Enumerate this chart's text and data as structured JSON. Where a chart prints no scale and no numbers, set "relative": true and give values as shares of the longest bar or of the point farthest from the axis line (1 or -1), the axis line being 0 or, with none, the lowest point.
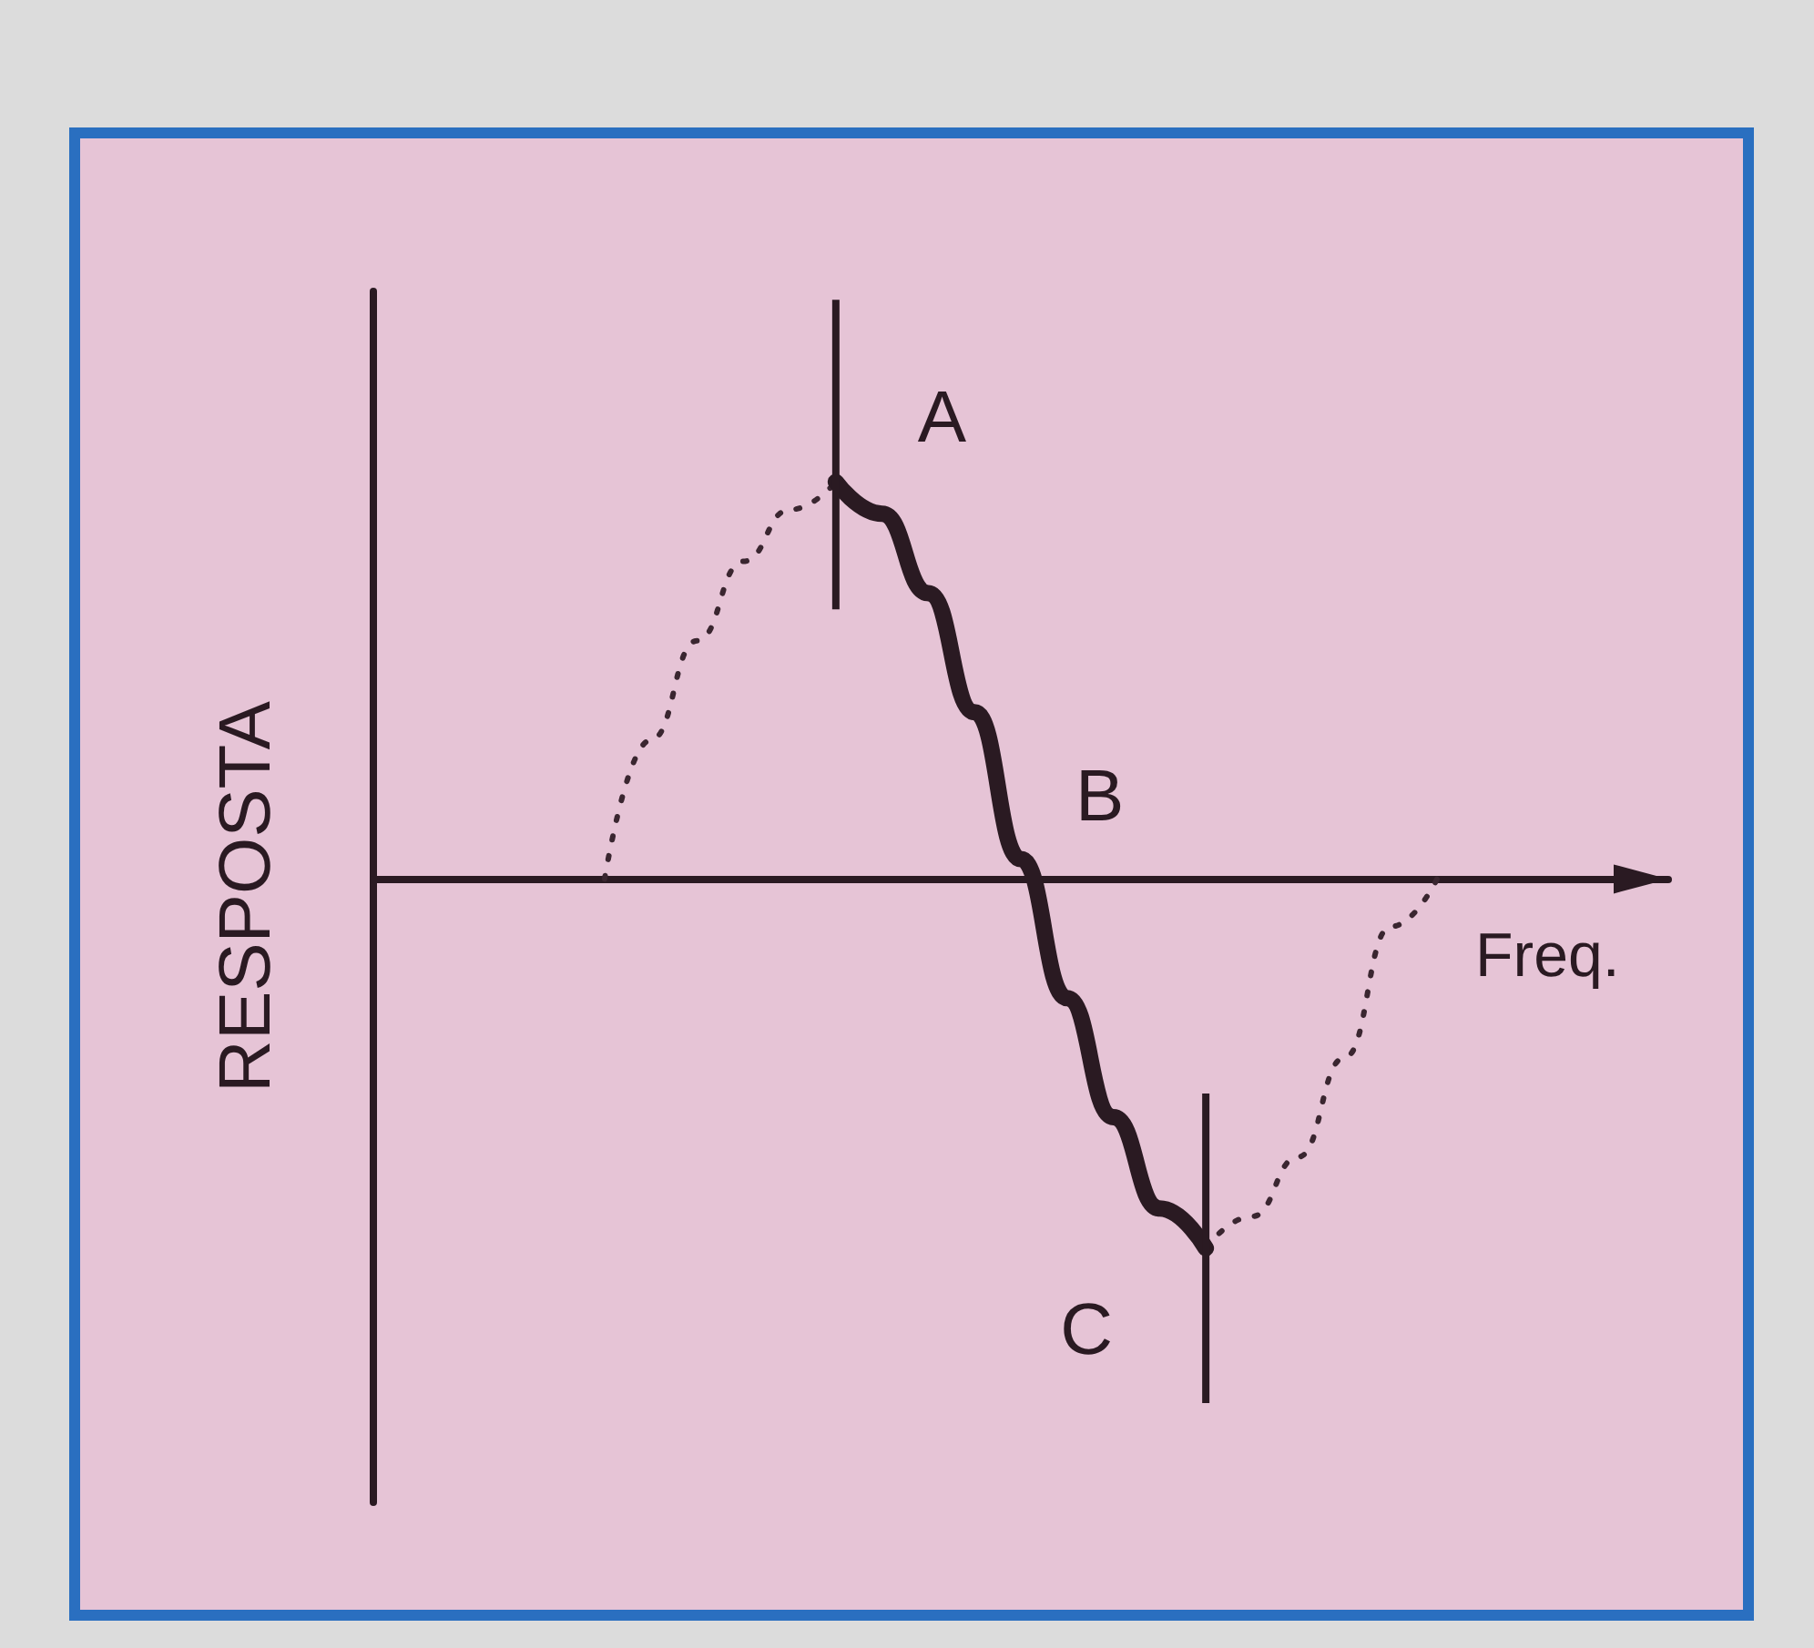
{
  "chart_data": {
    "type": "line",
    "relative": true,
    "xlabel": "Freq.",
    "ylabel": "RESPOSTA",
    "annotations": [
      "A",
      "B",
      "C"
    ],
    "categories": [
      null,
      null,
      null,
      null,
      null,
      null,
      null,
      null,
      null,
      null,
      null,
      null,
      null,
      null,
      null,
      null,
      null,
      null,
      null,
      null,
      null,
      null,
      null,
      null,
      null,
      null,
      null,
      null,
      null
    ],
    "series": [
      {
        "color": "#3a2630",
        "line_style": "dotted",
        "values": [
          null,
          null,
          null,
          null,
          null,
          0,
          0.35,
          0.6,
          0.8,
          0.93,
          1,
          null,
          null,
          null,
          null,
          null,
          null,
          null,
          null,
          null,
          null,
          null,
          null,
          null,
          null,
          null,
          null,
          null,
          null
        ]
      },
      {
        "color": "#2a1a22",
        "line_style": "solid",
        "values": [
          null,
          null,
          null,
          null,
          null,
          null,
          null,
          null,
          null,
          null,
          1,
          0.92,
          0.72,
          0.42,
          0.05,
          -0.3,
          -0.6,
          -0.83,
          -0.93,
          null,
          null,
          null,
          null,
          null,
          null,
          null,
          null,
          null,
          null
        ]
      },
      {
        "color": "#3a2630",
        "line_style": "dotted",
        "values": [
          null,
          null,
          null,
          null,
          null,
          null,
          null,
          null,
          null,
          null,
          null,
          null,
          null,
          null,
          null,
          null,
          null,
          null,
          -0.93,
          -0.85,
          -0.7,
          -0.45,
          -0.12,
          0,
          null,
          null,
          null,
          null,
          null
        ]
      }
    ]
  }
}
